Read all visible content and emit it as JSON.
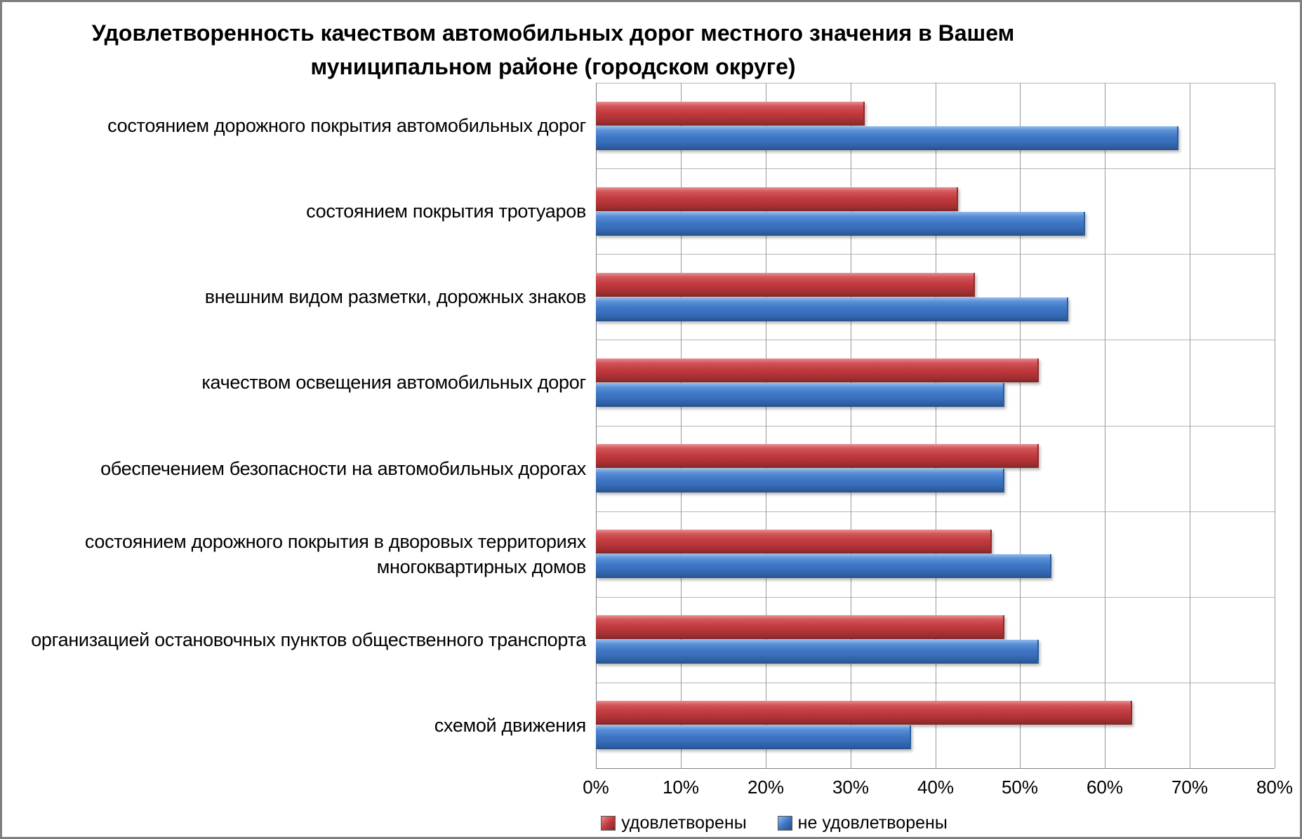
{
  "title": {
    "line1": "Удовлетворенность качеством автомобильных дорог местного значения в Вашем",
    "line2": "муниципальном районе (городском округе)"
  },
  "chart_data": {
    "type": "bar",
    "orientation": "horizontal",
    "title": "Удовлетворенность качеством автомобильных дорог местного значения в Вашем муниципальном районе (городском округе)",
    "categories": [
      "состоянием дорожного покрытия автомобильных дорог",
      "состоянием покрытия тротуаров",
      "внешним видом разметки, дорожных знаков",
      "качеством освещения автомобильных дорог",
      "обеспечением безопасности на автомобильных дорогах",
      "состоянием дорожного покрытия в дворовых территориях многоквартирных домов",
      "организацией остановочных пунктов общественного транспорта",
      "схемой движения"
    ],
    "series": [
      {
        "name": "удовлетворены",
        "color": "#C23B3F",
        "values": [
          31.5,
          42.5,
          44.5,
          52,
          52,
          46.5,
          48,
          63
        ]
      },
      {
        "name": "не удовлетворены",
        "color": "#3E77C6",
        "values": [
          68.5,
          57.5,
          55.5,
          48,
          48,
          53.5,
          52,
          37
        ]
      }
    ],
    "xlim": [
      0,
      80
    ],
    "x_tick_labels": [
      "0%",
      "10%",
      "20%",
      "30%",
      "40%",
      "50%",
      "60%",
      "70%",
      "80%"
    ],
    "grid": "vertical major gridlines every 10% plus horizontal category boundary lines",
    "legend_position": "bottom",
    "value_unit": "%"
  }
}
